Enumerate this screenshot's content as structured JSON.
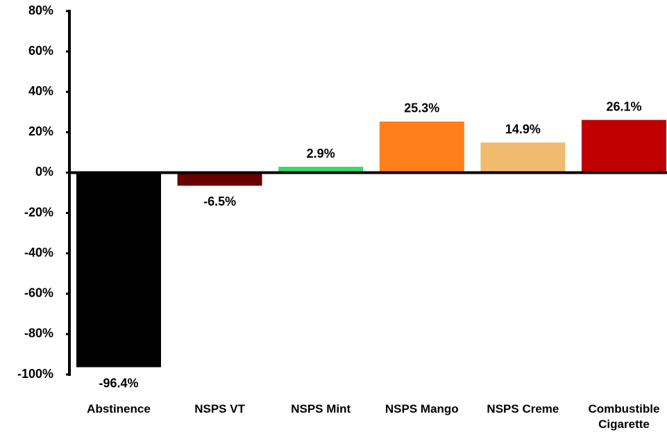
{
  "chart_data": {
    "type": "bar",
    "categories": [
      "Abstinence",
      "NSPS VT",
      "NSPS Mint",
      "NSPS Mango",
      "NSPS Creme",
      "Combustible Cigarette"
    ],
    "values": [
      -96.4,
      -6.5,
      2.9,
      25.3,
      14.9,
      26.1
    ],
    "value_labels": [
      "-96.4%",
      "-6.5%",
      "2.9%",
      "25.3%",
      "14.9%",
      "26.1%"
    ],
    "colors": [
      "#000000",
      "#6b0000",
      "#33dd66",
      "#ff7f1a",
      "#f0bb6e",
      "#c00000"
    ],
    "ylim": [
      -100,
      80
    ],
    "yticks": [
      {
        "value": -100,
        "label": "-100%"
      },
      {
        "value": -80,
        "label": "-80%"
      },
      {
        "value": -60,
        "label": "-60%"
      },
      {
        "value": -40,
        "label": "-40%"
      },
      {
        "value": -20,
        "label": "-20%"
      },
      {
        "value": 0,
        "label": "0%"
      },
      {
        "value": 20,
        "label": "20%"
      },
      {
        "value": 40,
        "label": "40%"
      },
      {
        "value": 60,
        "label": "60%"
      },
      {
        "value": 80,
        "label": "80%"
      }
    ],
    "grid": false
  }
}
